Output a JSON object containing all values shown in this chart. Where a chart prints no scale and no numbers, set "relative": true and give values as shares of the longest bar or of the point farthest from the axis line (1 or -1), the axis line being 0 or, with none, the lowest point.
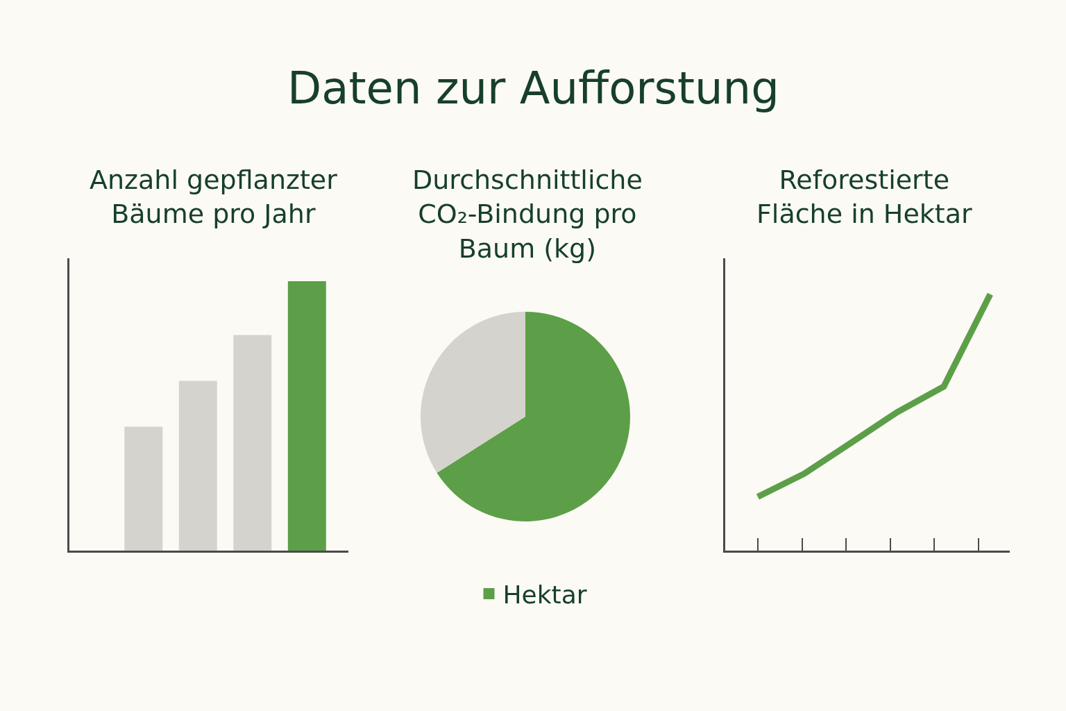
{
  "chart_data": [
    {
      "type": "other",
      "title": "Daten zur Aufforstung"
    },
    {
      "type": "bar",
      "title": "Anzahl gepflanzter\nBäume pro Jahr",
      "relative": true,
      "categories": [
        null,
        null,
        null,
        null
      ],
      "values": [
        0.46,
        0.63,
        0.8,
        1
      ],
      "colors": [
        "#d5d3cd",
        "#d5d3cd",
        "#d5d3cd",
        "#5c9f48"
      ]
    },
    {
      "type": "pie",
      "title": "Durchschnittliche\nCO₂-Bindung pro\nBaum (kg)",
      "categories": [
        "Hektar",
        null
      ],
      "values": [
        66,
        34
      ],
      "colors": [
        "#5c9f48",
        "#d5d3cd"
      ],
      "legend": "bottom"
    },
    {
      "type": "line",
      "title": "Reforestierte\nFläche in Hektar",
      "relative": true,
      "categories": [
        null,
        null,
        null,
        null,
        null,
        null
      ],
      "values": [
        0.21,
        0.3,
        0.42,
        0.54,
        0.64,
        1
      ],
      "color": "#5c9f48",
      "marker": "none",
      "line_style": "solid"
    }
  ]
}
